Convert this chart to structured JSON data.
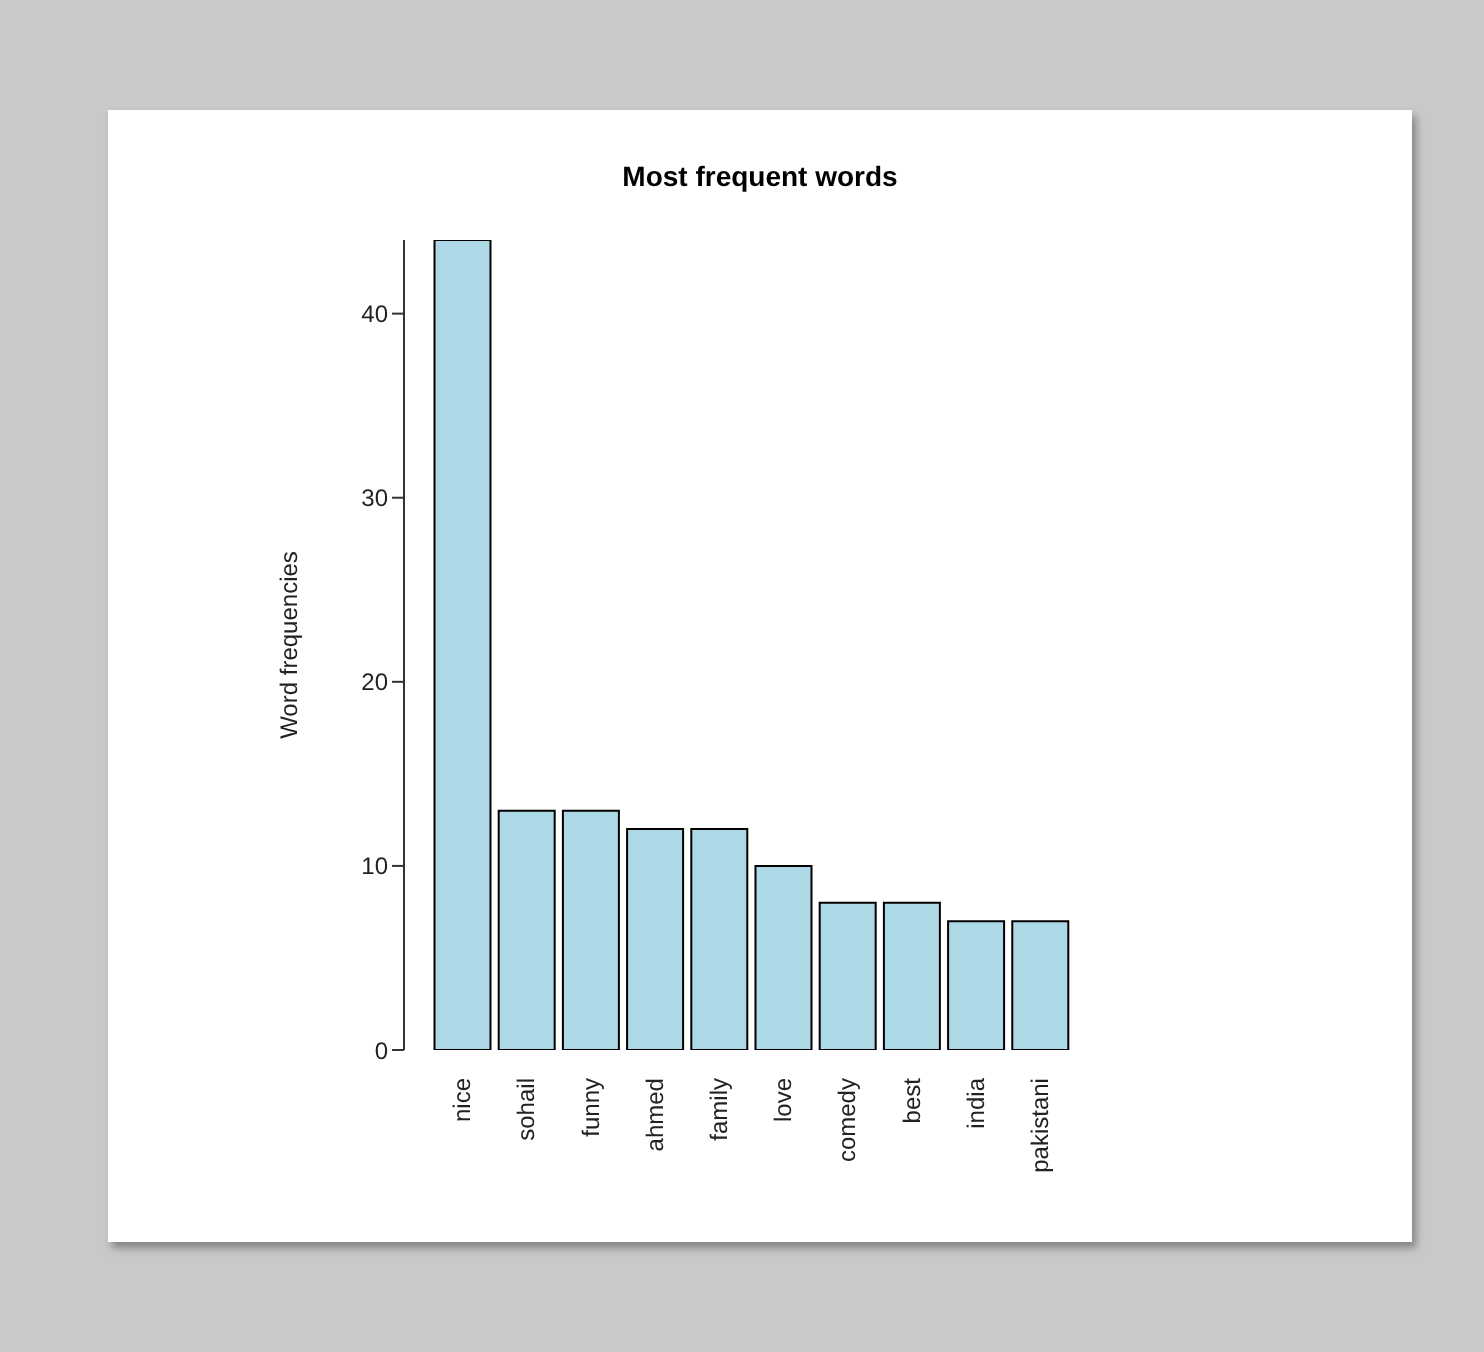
{
  "chart_data": {
    "type": "bar",
    "title": "Most frequent words",
    "ylabel": "Word frequencies",
    "categories": [
      "nice",
      "sohail",
      "funny",
      "ahmed",
      "family",
      "love",
      "comedy",
      "best",
      "india",
      "pakistani"
    ],
    "values": [
      44,
      13,
      13,
      12,
      12,
      10,
      8,
      8,
      7,
      7
    ],
    "color": "#add8e6",
    "ylim": [
      0,
      44
    ],
    "yticks": [
      0,
      10,
      20,
      30,
      40
    ]
  }
}
